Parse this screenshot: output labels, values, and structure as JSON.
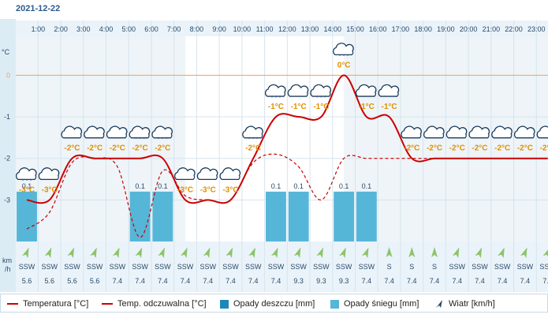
{
  "header": {
    "date": "2021-12-22"
  },
  "chart_data": {
    "type": "line",
    "title": "",
    "ylabel": "°C",
    "wind_unit_label": "km\n/h",
    "ylim": [
      -4.0,
      0.9
    ],
    "y_ticks": [
      0,
      -1,
      -2,
      -3
    ],
    "hours": [
      "1:00",
      "2:00",
      "3:00",
      "4:00",
      "5:00",
      "6:00",
      "7:00",
      "8:00",
      "9:00",
      "10:00",
      "11:00",
      "12:00",
      "13:00",
      "14:00",
      "15:00",
      "16:00",
      "17:00",
      "18:00",
      "19:00",
      "20:00",
      "21:00",
      "22:00",
      "23:00"
    ],
    "temperature": [
      -3,
      -3,
      -2,
      -2,
      -2,
      -2,
      -2,
      -3,
      -3,
      -3,
      -2,
      -1,
      -1,
      -1,
      0,
      -1,
      -1,
      -2,
      -2,
      -2,
      -2,
      -2,
      -2,
      -2
    ],
    "temperature_labels": [
      "-3°C",
      "-3°C",
      "-2°C",
      "-2°C",
      "-2°C",
      "-2°C",
      "-2°C",
      "-3°C",
      "-3°C",
      "-3°C",
      "-2°C",
      "-1°C",
      "-1°C",
      "-1°C",
      "0°C",
      "-1°C",
      "-1°C",
      "-2°C",
      "-2°C",
      "-2°C",
      "-2°C",
      "-2°C",
      "-2°C",
      "-2°C"
    ],
    "feels_like": [
      -3.7,
      -3.3,
      -2.1,
      -2.0,
      -2.2,
      -3.9,
      -2.3,
      -2.9,
      -3.0,
      -3.0,
      -2.1,
      -1.9,
      -2.2,
      -3.0,
      -2.0,
      -2.0,
      -2.0,
      -2.0,
      -2.0,
      -2.0,
      -2.0,
      -2.0,
      -2.0,
      -2.0
    ],
    "snow": [
      0.1,
      0,
      0,
      0,
      0,
      0.1,
      0.1,
      0,
      0,
      0,
      0,
      0.1,
      0.1,
      0,
      0.1,
      0.1,
      0,
      0,
      0,
      0,
      0,
      0,
      0,
      0
    ],
    "snow_labels": [
      "0.1",
      "",
      "",
      "",
      "",
      "0.1",
      "0.1",
      "",
      "",
      "",
      "",
      "0.1",
      "0.1",
      "",
      "0.1",
      "0.1",
      "",
      "",
      "",
      "",
      "",
      "",
      "",
      ""
    ],
    "rain": [
      0,
      0,
      0,
      0,
      0,
      0,
      0,
      0,
      0,
      0,
      0,
      0,
      0,
      0,
      0,
      0,
      0,
      0,
      0,
      0,
      0,
      0,
      0,
      0
    ],
    "wind_dir": [
      "SSW",
      "SSW",
      "SSW",
      "SSW",
      "SSW",
      "SSW",
      "SSW",
      "SSW",
      "SSW",
      "SSW",
      "SSW",
      "SSW",
      "SSW",
      "SSW",
      "SSW",
      "SSW",
      "S",
      "S",
      "S",
      "SSW",
      "SSW",
      "SSW",
      "SSW",
      "SSW"
    ],
    "wind_deg": [
      202,
      202,
      202,
      202,
      202,
      202,
      202,
      202,
      202,
      202,
      202,
      202,
      202,
      202,
      202,
      202,
      180,
      180,
      180,
      202,
      202,
      202,
      202,
      202
    ],
    "wind_speed": [
      "5.6",
      "5.6",
      "5.6",
      "5.6",
      "7.4",
      "7.4",
      "7.4",
      "7.4",
      "7.4",
      "7.4",
      "7.4",
      "7.4",
      "9.3",
      "9.3",
      "9.3",
      "7.4",
      "7.4",
      "7.4",
      "7.4",
      "7.4",
      "7.4",
      "7.4",
      "7.4",
      "7.4"
    ],
    "weather_icons": [
      "snow-cloud-icon",
      "cloud-icon",
      "cloud-icon",
      "cloud-icon",
      "cloud-icon",
      "snow-cloud-icon",
      "snow-cloud-icon",
      "cloud-icon",
      "cloud-icon",
      "cloud-icon",
      "snow-cloud-icon",
      "snow-cloud-icon",
      "cloud-icon",
      "snow-cloud-icon",
      "snow-cloud-icon",
      "cloud-icon",
      "cloud-icon",
      "cloud-icon",
      "cloud-icon",
      "cloud-icon",
      "cloud-icon",
      "cloud-icon",
      "cloud-icon",
      "cloud-icon"
    ],
    "daylight_range": [
      "8:30",
      "15:30"
    ]
  },
  "legend": {
    "temp": "Temperatura [°C]",
    "feels": "Temp. odczuwalna [°C]",
    "rain": "Opady deszczu [mm]",
    "snow": "Opady śniegu [mm]",
    "wind": "Wiatr [km/h]"
  },
  "colors": {
    "temp": "#cc0000",
    "rain": "#1f87b8",
    "snow": "#56b6d8",
    "wind_arrow": "#8fc36a",
    "grid": "#d6e4ee",
    "zero_line": "#f0a060",
    "night_bg": "#eef4f8",
    "label": "#e09000"
  }
}
